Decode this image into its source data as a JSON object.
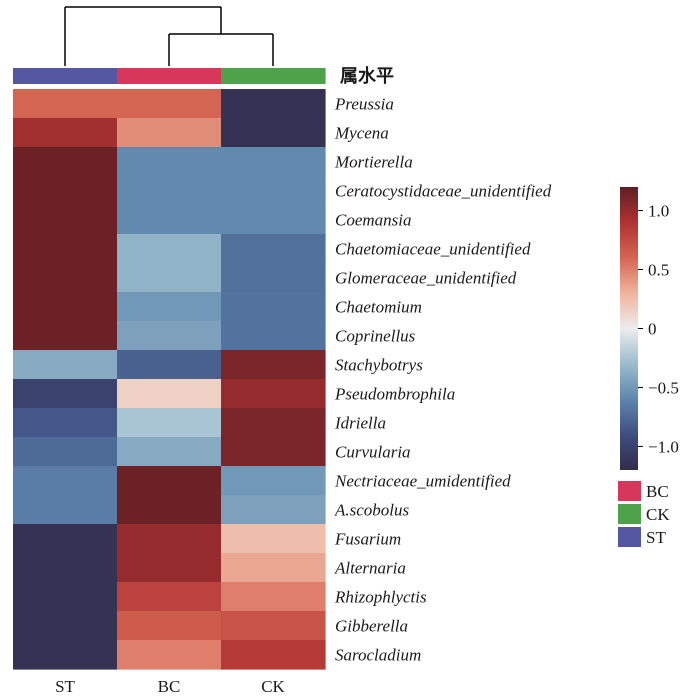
{
  "chart_data": {
    "type": "heatmap",
    "level_label": "属水平",
    "columns": [
      "ST",
      "BC",
      "CK"
    ],
    "rows": [
      "Preussia",
      "Mycena",
      "Mortierella",
      "Ceratocystidaceae_unidentified",
      "Coemansia",
      "Chaetomiaceae_unidentified",
      "Glomeraceae_unidentified",
      "Chaetomium",
      "Coprinellus",
      "Stachybotrys",
      "Pseudombrophila",
      "Idriella",
      "Curvularia",
      "Nectriaceae_umidentified",
      "A.scobolus",
      "Fusarium",
      "Alternaria",
      "Rhizophlyctis",
      "Gibberella",
      "Sarocladium"
    ],
    "values": [
      [
        0.6,
        0.6,
        -1.15
      ],
      [
        0.95,
        0.45,
        -1.15
      ],
      [
        1.15,
        -0.58,
        -0.58
      ],
      [
        1.15,
        -0.58,
        -0.58
      ],
      [
        1.15,
        -0.58,
        -0.58
      ],
      [
        1.15,
        -0.35,
        -0.72
      ],
      [
        1.15,
        -0.35,
        -0.72
      ],
      [
        1.15,
        -0.5,
        -0.7
      ],
      [
        1.15,
        -0.45,
        -0.7
      ],
      [
        -0.4,
        -0.8,
        1.1
      ],
      [
        -1.0,
        0.15,
        1.0
      ],
      [
        -0.85,
        -0.25,
        1.1
      ],
      [
        -0.75,
        -0.4,
        1.1
      ],
      [
        -0.65,
        1.15,
        -0.5
      ],
      [
        -0.65,
        1.15,
        -0.45
      ],
      [
        -1.15,
        1.0,
        0.25
      ],
      [
        -1.15,
        1.0,
        0.35
      ],
      [
        -1.15,
        0.8,
        0.5
      ],
      [
        -1.15,
        0.65,
        0.7
      ],
      [
        -1.15,
        0.5,
        0.85
      ]
    ],
    "color_scale": {
      "min": -1.2,
      "max": 1.2,
      "stops": [
        "#332c4a",
        "#3e4e80",
        "#5e86ad",
        "#9bbccd",
        "#ececec",
        "#f0b49e",
        "#d46552",
        "#b03232",
        "#5e1e24"
      ],
      "ticks": [
        "1.0",
        "0.5",
        "0",
        "−0.5",
        "−1.0"
      ],
      "tick_values": [
        1.0,
        0.5,
        0,
        -0.5,
        -1.0
      ]
    },
    "groups": [
      {
        "name": "BC",
        "color": "#d6375a"
      },
      {
        "name": "CK",
        "color": "#4ea24a"
      },
      {
        "name": "ST",
        "color": "#5557a0"
      }
    ],
    "column_group_colors": [
      "#5557a0",
      "#d6375a",
      "#4ea24a"
    ],
    "dendrogram": "(ST,(BC,CK))"
  }
}
